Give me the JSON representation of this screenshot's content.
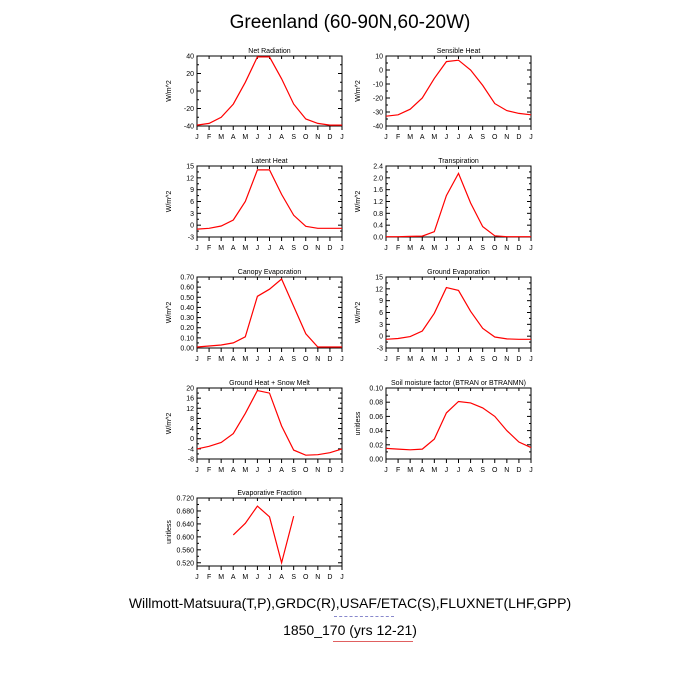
{
  "title": "Greenland (60-90N,60-20W)",
  "footer": {
    "line1": "Willmott-Matsuura(T,P),GRDC(R),USAF/ETAC(S),FLUXNET(LHF,GPP)",
    "line2": "1850_170 (yrs 12-21)"
  },
  "colors": {
    "series": "#ff0000",
    "axis": "#000000"
  },
  "chart_data": [
    {
      "type": "line",
      "title": "Net Radiation",
      "ylabel": "W/m^2",
      "categories": [
        "J",
        "F",
        "M",
        "A",
        "M",
        "J",
        "J",
        "A",
        "S",
        "O",
        "N",
        "D",
        "J"
      ],
      "yticks": [
        "40",
        "20",
        "0",
        "-20",
        "-40"
      ],
      "ylim": [
        -40,
        40
      ],
      "values": [
        -39,
        -37,
        -30,
        -15,
        10,
        39,
        39,
        14,
        -15,
        -32,
        -37,
        -39,
        -39
      ]
    },
    {
      "type": "line",
      "title": "Sensible Heat",
      "ylabel": "W/m^2",
      "categories": [
        "J",
        "F",
        "M",
        "A",
        "M",
        "J",
        "J",
        "A",
        "S",
        "O",
        "N",
        "D",
        "J"
      ],
      "yticks": [
        "10",
        "0",
        "-10",
        "-20",
        "-30",
        "-40"
      ],
      "ylim": [
        -40,
        10
      ],
      "values": [
        -33,
        -32,
        -28,
        -20,
        -6,
        6,
        7,
        0,
        -11,
        -24,
        -29,
        -31,
        -32
      ]
    },
    {
      "type": "line",
      "title": "Latent Heat",
      "ylabel": "W/m^2",
      "categories": [
        "J",
        "F",
        "M",
        "A",
        "M",
        "J",
        "J",
        "A",
        "S",
        "O",
        "N",
        "D",
        "J"
      ],
      "yticks": [
        "15",
        "12",
        "9",
        "6",
        "3",
        "0",
        "-3"
      ],
      "ylim": [
        -3,
        15
      ],
      "values": [
        -1,
        -0.8,
        -0.2,
        1.3,
        6,
        14,
        14,
        7.8,
        2.5,
        -0.3,
        -0.8,
        -0.8,
        -0.8
      ]
    },
    {
      "type": "line",
      "title": "Transpiration",
      "ylabel": "W/m^2",
      "categories": [
        "J",
        "F",
        "M",
        "A",
        "M",
        "J",
        "J",
        "A",
        "S",
        "O",
        "N",
        "D",
        "J"
      ],
      "yticks": [
        "2.4",
        "2.0",
        "1.6",
        "1.2",
        "0.8",
        "0.4",
        "0.0"
      ],
      "ylim": [
        0,
        2.4
      ],
      "values": [
        0.01,
        0.01,
        0.02,
        0.03,
        0.18,
        1.4,
        2.15,
        1.15,
        0.35,
        0.04,
        0.01,
        0.01,
        0.01
      ]
    },
    {
      "type": "line",
      "title": "Canopy Evaporation",
      "ylabel": "W/m^2",
      "categories": [
        "J",
        "F",
        "M",
        "A",
        "M",
        "J",
        "J",
        "A",
        "S",
        "O",
        "N",
        "D",
        "J"
      ],
      "yticks": [
        "0.70",
        "0.60",
        "0.50",
        "0.40",
        "0.30",
        "0.20",
        "0.10",
        "0.00"
      ],
      "ylim": [
        0,
        0.7
      ],
      "values": [
        0.01,
        0.02,
        0.03,
        0.05,
        0.11,
        0.51,
        0.58,
        0.68,
        0.41,
        0.14,
        0.01,
        0.01,
        0.01
      ]
    },
    {
      "type": "line",
      "title": "Ground Evaporation",
      "ylabel": "W/m^2",
      "categories": [
        "J",
        "F",
        "M",
        "A",
        "M",
        "J",
        "J",
        "A",
        "S",
        "O",
        "N",
        "D",
        "J"
      ],
      "yticks": [
        "15",
        "12",
        "9",
        "6",
        "3",
        "0",
        "-3"
      ],
      "ylim": [
        -3,
        15
      ],
      "values": [
        -0.8,
        -0.6,
        -0.1,
        1.3,
        5.8,
        12.3,
        11.6,
        6.3,
        2,
        -0.2,
        -0.7,
        -0.8,
        -0.8
      ]
    },
    {
      "type": "line",
      "title": "Ground Heat + Snow Melt",
      "ylabel": "W/m^2",
      "categories": [
        "J",
        "F",
        "M",
        "A",
        "M",
        "J",
        "J",
        "A",
        "S",
        "O",
        "N",
        "D",
        "J"
      ],
      "yticks": [
        "20",
        "16",
        "12",
        "8",
        "4",
        "0",
        "-4",
        "-8"
      ],
      "ylim": [
        -8,
        20
      ],
      "values": [
        -4,
        -3,
        -1.5,
        2,
        10,
        19,
        18,
        5,
        -4.5,
        -6.5,
        -6.3,
        -5.5,
        -4
      ]
    },
    {
      "type": "line",
      "title": "Soil moisture factor (BTRAN or BTRANMN)",
      "ylabel": "unitless",
      "categories": [
        "J",
        "F",
        "M",
        "A",
        "M",
        "J",
        "J",
        "A",
        "S",
        "O",
        "N",
        "D",
        "J"
      ],
      "yticks": [
        "0.10",
        "0.08",
        "0.06",
        "0.04",
        "0.02",
        "0.00"
      ],
      "ylim": [
        0,
        0.1
      ],
      "values": [
        0.015,
        0.014,
        0.013,
        0.014,
        0.028,
        0.065,
        0.081,
        0.079,
        0.072,
        0.06,
        0.04,
        0.024,
        0.016
      ]
    },
    {
      "type": "line",
      "title": "Evaporative Fraction",
      "ylabel": "unitless",
      "categories": [
        "J",
        "F",
        "M",
        "A",
        "M",
        "J",
        "J",
        "A",
        "S",
        "O",
        "N",
        "D",
        "J"
      ],
      "yticks": [
        "0.720",
        "0.680",
        "0.640",
        "0.600",
        "0.560",
        "0.520"
      ],
      "ylim": [
        0.51,
        0.72
      ],
      "values": [
        null,
        null,
        null,
        0.606,
        0.642,
        0.695,
        0.662,
        0.52,
        0.664,
        null,
        null,
        null,
        null
      ]
    }
  ]
}
